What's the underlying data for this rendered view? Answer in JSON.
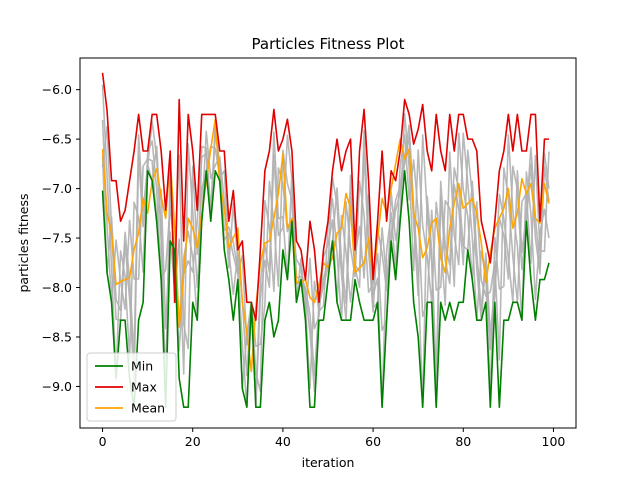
{
  "chart_data": {
    "type": "line",
    "title": "Particles Fitness Plot",
    "xlabel": "iteration",
    "ylabel": "particles fitness",
    "xlim": [
      -5,
      105
    ],
    "ylim": [
      -9.42,
      -5.68
    ],
    "x_ticks": [
      0,
      20,
      40,
      60,
      80,
      100
    ],
    "x_tick_labels": [
      "0",
      "20",
      "40",
      "60",
      "80",
      "100"
    ],
    "y_ticks": [
      -9.0,
      -8.5,
      -8.0,
      -7.5,
      -7.0,
      -6.5,
      -6.0
    ],
    "y_tick_labels": [
      "−9.0",
      "−8.5",
      "−8.0",
      "−7.5",
      "−7.0",
      "−6.5",
      "−6.0"
    ],
    "grid": false,
    "legend_position": "lower-left",
    "background_series_color": "#b0b0b0",
    "series": [
      {
        "name": "Min",
        "color": "#008000",
        "values": [
          -7.02,
          -7.85,
          -8.15,
          -8.92,
          -8.33,
          -8.33,
          -8.92,
          -9.21,
          -8.33,
          -8.15,
          -6.82,
          -6.92,
          -7.33,
          -7.92,
          -9.21,
          -7.53,
          -7.62,
          -8.92,
          -9.21,
          -9.21,
          -8.15,
          -8.33,
          -7.33,
          -6.82,
          -7.33,
          -6.82,
          -6.92,
          -7.62,
          -7.92,
          -8.33,
          -7.92,
          -9.02,
          -9.21,
          -8.15,
          -9.21,
          -9.21,
          -8.33,
          -8.15,
          -8.5,
          -8.33,
          -7.62,
          -7.92,
          -7.33,
          -8.15,
          -7.92,
          -8.33,
          -9.21,
          -9.21,
          -8.33,
          -8.33,
          -7.92,
          -7.53,
          -8.15,
          -8.33,
          -8.33,
          -8.33,
          -7.92,
          -8.15,
          -8.33,
          -8.33,
          -8.33,
          -8.15,
          -9.21,
          -8.33,
          -7.53,
          -7.92,
          -7.33,
          -6.82,
          -7.33,
          -8.15,
          -8.5,
          -9.21,
          -8.15,
          -8.15,
          -9.21,
          -8.15,
          -8.33,
          -8.15,
          -8.33,
          -8.15,
          -8.15,
          -7.62,
          -7.92,
          -8.33,
          -8.33,
          -8.15,
          -9.21,
          -8.15,
          -9.21,
          -8.33,
          -8.33,
          -8.15,
          -8.15,
          -8.33,
          -7.33,
          -7.92,
          -8.33,
          -7.92,
          -7.92,
          -7.75
        ]
      },
      {
        "name": "Max",
        "color": "#e00000",
        "values": [
          -5.83,
          -6.21,
          -6.92,
          -6.92,
          -7.33,
          -7.22,
          -6.92,
          -6.62,
          -6.25,
          -6.62,
          -6.62,
          -6.25,
          -6.25,
          -6.62,
          -7.22,
          -6.62,
          -8.15,
          -6.1,
          -7.53,
          -6.25,
          -6.62,
          -7.22,
          -6.25,
          -6.25,
          -6.25,
          -6.25,
          -6.62,
          -6.62,
          -7.33,
          -7.02,
          -7.62,
          -7.53,
          -8.15,
          -8.15,
          -8.33,
          -7.62,
          -6.82,
          -6.62,
          -6.2,
          -6.62,
          -6.5,
          -6.3,
          -6.62,
          -7.53,
          -7.62,
          -7.92,
          -7.33,
          -7.62,
          -8.15,
          -7.62,
          -7.33,
          -6.82,
          -6.5,
          -6.82,
          -6.62,
          -6.5,
          -7.62,
          -6.62,
          -6.2,
          -6.92,
          -7.92,
          -7.33,
          -6.62,
          -7.33,
          -6.82,
          -6.92,
          -6.62,
          -6.1,
          -6.25,
          -6.55,
          -6.4,
          -6.15,
          -6.62,
          -6.82,
          -6.25,
          -6.62,
          -6.82,
          -6.25,
          -6.62,
          -6.25,
          -6.25,
          -6.5,
          -6.5,
          -6.62,
          -7.33,
          -7.53,
          -7.75,
          -7.33,
          -6.82,
          -6.62,
          -6.25,
          -6.62,
          -6.25,
          -6.62,
          -6.62,
          -6.25,
          -6.25,
          -7.33,
          -6.5,
          -6.5
        ]
      },
      {
        "name": "Mean",
        "color": "#ffa500",
        "values": [
          -6.6,
          -7.25,
          -7.45,
          -7.97,
          -7.94,
          -7.92,
          -7.9,
          -7.61,
          -7.45,
          -7.1,
          -7.25,
          -6.93,
          -6.8,
          -7.08,
          -7.3,
          -6.7,
          -7.4,
          -8.4,
          -7.85,
          -7.3,
          -7.4,
          -7.6,
          -7.25,
          -6.93,
          -6.6,
          -6.3,
          -6.95,
          -7.2,
          -7.6,
          -7.5,
          -7.4,
          -8.15,
          -8.45,
          -8.85,
          -8.2,
          -7.75,
          -7.55,
          -7.53,
          -7.3,
          -7.05,
          -6.65,
          -7.4,
          -7.3,
          -7.95,
          -7.95,
          -7.92,
          -8.1,
          -8.15,
          -7.97,
          -7.75,
          -7.8,
          -7.7,
          -7.45,
          -7.4,
          -7.05,
          -7.2,
          -7.85,
          -7.8,
          -7.75,
          -7.5,
          -7.9,
          -7.5,
          -7.1,
          -7.25,
          -7.0,
          -6.75,
          -6.5,
          -6.7,
          -6.6,
          -7.25,
          -7.4,
          -7.7,
          -7.6,
          -7.35,
          -7.3,
          -7.7,
          -7.85,
          -7.4,
          -7.15,
          -6.95,
          -7.2,
          -7.15,
          -7.1,
          -7.25,
          -7.55,
          -7.95,
          -7.65,
          -7.4,
          -7.3,
          -7.2,
          -7.0,
          -7.4,
          -7.25,
          -6.9,
          -7.05,
          -6.95,
          -7.3,
          -7.35,
          -6.95,
          -7.15
        ]
      }
    ]
  }
}
